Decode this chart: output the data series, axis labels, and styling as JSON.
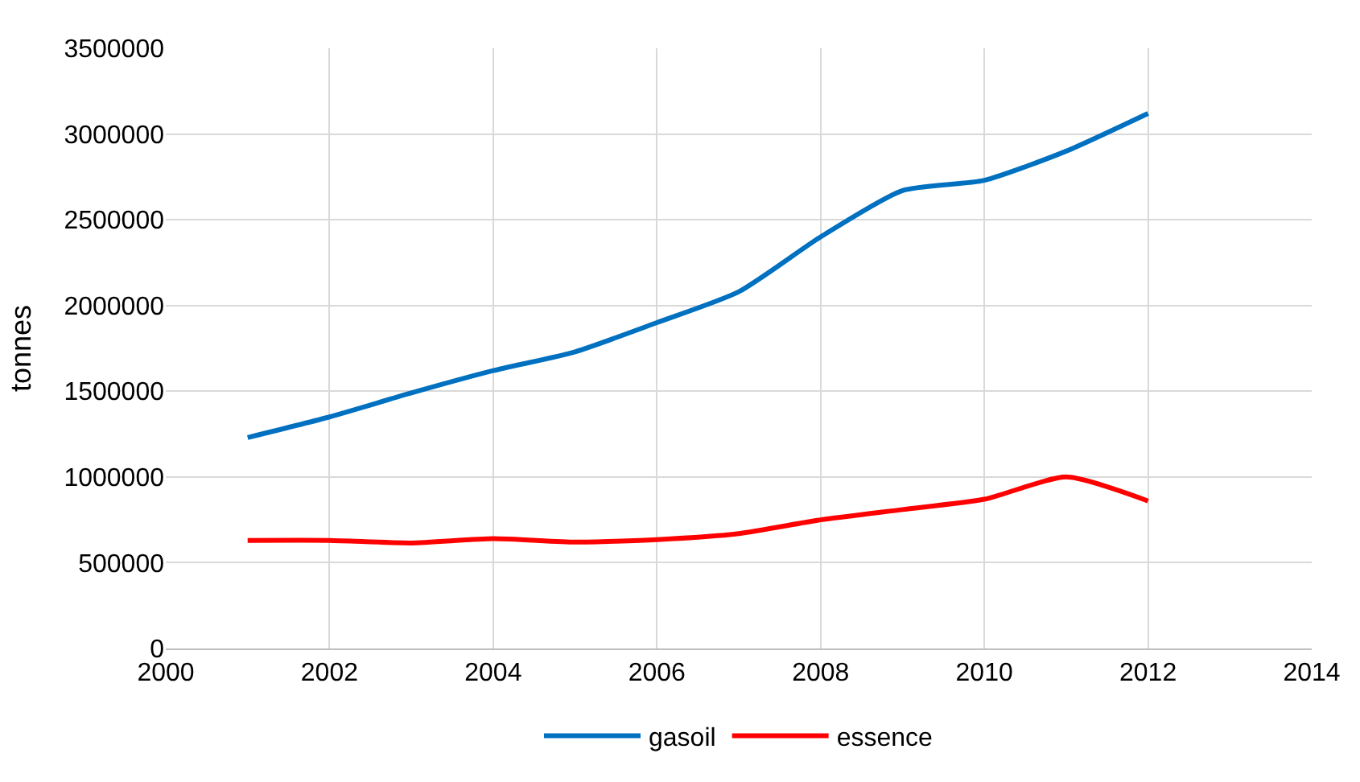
{
  "chart_data": {
    "type": "line",
    "ylabel": "tonnes",
    "x": [
      2001,
      2002,
      2003,
      2004,
      2005,
      2006,
      2007,
      2008,
      2009,
      2010,
      2011,
      2012
    ],
    "series": [
      {
        "name": "gasoil",
        "color": "#0070c0",
        "values": [
          1230000,
          1350000,
          1490000,
          1620000,
          1730000,
          1900000,
          2080000,
          2400000,
          2670000,
          2730000,
          2900000,
          3120000
        ]
      },
      {
        "name": "essence",
        "color": "#ff0000",
        "values": [
          630000,
          630000,
          615000,
          640000,
          620000,
          635000,
          670000,
          750000,
          810000,
          870000,
          1000000,
          860000
        ]
      }
    ],
    "xlim": [
      2000,
      2014
    ],
    "xticks": [
      2000,
      2002,
      2004,
      2006,
      2008,
      2010,
      2012,
      2014
    ],
    "ylim": [
      0,
      3500000
    ],
    "yticks": [
      0,
      500000,
      1000000,
      1500000,
      2000000,
      2500000,
      3000000,
      3500000
    ],
    "grid": true,
    "legend": "bottom",
    "marker": "none",
    "line_style": "solid"
  }
}
